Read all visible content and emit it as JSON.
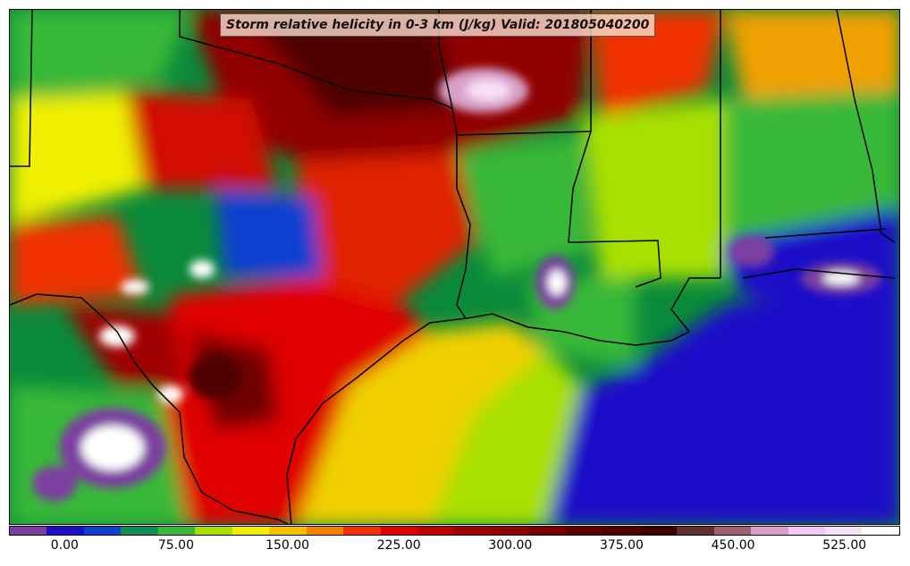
{
  "title": "Storm relative helicity in 0-3 km (J/kg) Valid: 201805040200",
  "colorbar": {
    "colors": [
      "#7b3fa0",
      "#1a10c8",
      "#1040d0",
      "#109050",
      "#38b838",
      "#a8e000",
      "#f0f000",
      "#f8c000",
      "#f88000",
      "#f03000",
      "#e00000",
      "#c00000",
      "#a00000",
      "#900000",
      "#780000",
      "#600000",
      "#500000",
      "#400000",
      "#603030",
      "#a06070",
      "#d8a0c8",
      "#f0c8f0",
      "#f8e0f8",
      "#ffffff"
    ],
    "tick_labels": [
      "0.00",
      "75.00",
      "150.00",
      "225.00",
      "300.00",
      "375.00",
      "450.00",
      "525.00"
    ]
  },
  "legend_palette_note": ""
}
